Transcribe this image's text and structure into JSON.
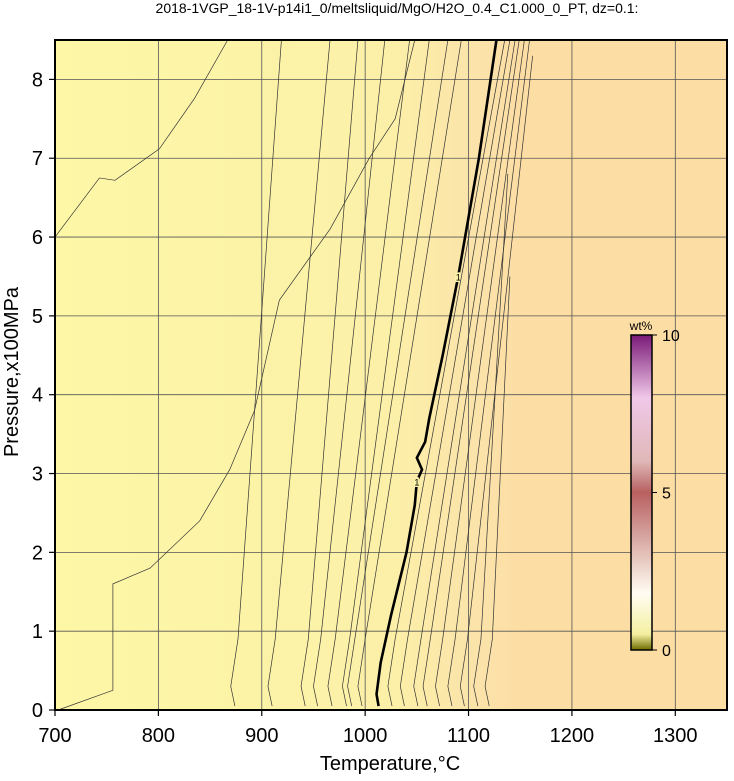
{
  "chart_data": {
    "type": "contour",
    "title": "2018-1VGP_18-1V-p14i1_0/meltsliquid/MgO/H2O_0.4_C1.000_0_PT, dz=0.1:",
    "xlabel": "Temperature,°C",
    "ylabel": "Pressure,x100MPa",
    "xlim": [
      700,
      1350
    ],
    "ylim": [
      0,
      8.5
    ],
    "xticks": [
      700,
      800,
      900,
      1000,
      1100,
      1200,
      1300
    ],
    "yticks": [
      0,
      1,
      2,
      3,
      4,
      5,
      6,
      7,
      8
    ],
    "grid": true,
    "line_color": "#333333",
    "colorbar": {
      "label": "wt%",
      "lim": [
        0,
        10
      ],
      "ticks": [
        0,
        5,
        10
      ]
    },
    "contours": [
      {
        "x": [
          703,
          756,
          756,
          792,
          840,
          869,
          893,
          917,
          966,
          1004,
          1029,
          1048
        ],
        "y": [
          0,
          0.25,
          1.6,
          1.8,
          2.4,
          3.05,
          3.8,
          5.2,
          6.1,
          7.0,
          7.5,
          8.5
        ]
      },
      {
        "x": [
          700,
          743,
          758,
          801,
          835,
          867
        ],
        "y": [
          6.0,
          6.75,
          6.72,
          7.12,
          7.76,
          8.5
        ]
      },
      {
        "x": [
          874,
          870,
          877,
          919
        ],
        "y": [
          0.05,
          0.3,
          0.9,
          8.5
        ]
      },
      {
        "x": [
          910,
          906,
          913,
          966
        ],
        "y": [
          0.05,
          0.3,
          0.9,
          8.5
        ]
      },
      {
        "x": [
          942,
          938,
          945,
          993
        ],
        "y": [
          0.05,
          0.3,
          0.9,
          8.5
        ]
      },
      {
        "x": [
          954,
          950,
          957,
          1019
        ],
        "y": [
          0.05,
          0.3,
          0.9,
          8.5
        ]
      },
      {
        "x": [
          968,
          964,
          971,
          1043
        ],
        "y": [
          0.05,
          0.3,
          0.9,
          8.5
        ]
      },
      {
        "x": [
          982,
          978,
          985,
          1062
        ],
        "y": [
          0.05,
          0.3,
          0.9,
          8.5
        ]
      },
      {
        "x": [
          987,
          983,
          990,
          1080
        ],
        "y": [
          0.05,
          0.3,
          0.9,
          8.5
        ]
      },
      {
        "x": [
          997,
          993,
          1000,
          1093
        ],
        "y": [
          0.05,
          0.3,
          0.9,
          8.5
        ]
      },
      {
        "x": [
          1013,
          1011,
          1015,
          1025,
          1040,
          1048,
          1050,
          1055,
          1050,
          1058,
          1062,
          1075,
          1090,
          1110,
          1127
        ],
        "y": [
          0.05,
          0.2,
          0.6,
          1.2,
          2.0,
          2.6,
          2.9,
          3.05,
          3.2,
          3.4,
          3.7,
          4.5,
          5.5,
          7.0,
          8.5
        ],
        "label": "1",
        "bold": true
      },
      {
        "x": [
          1026,
          1022,
          1029,
          1135
        ],
        "y": [
          0.05,
          0.3,
          0.9,
          8.5
        ]
      },
      {
        "x": [
          1038,
          1034,
          1041,
          1140
        ],
        "y": [
          0.05,
          0.3,
          0.9,
          8.5
        ]
      },
      {
        "x": [
          1051,
          1047,
          1054,
          1145
        ],
        "y": [
          0.05,
          0.3,
          0.9,
          8.5
        ]
      },
      {
        "x": [
          1060,
          1056,
          1063,
          1149
        ],
        "y": [
          0.05,
          0.3,
          0.9,
          8.5
        ]
      },
      {
        "x": [
          1072,
          1068,
          1075,
          1154
        ],
        "y": [
          0.05,
          0.3,
          0.9,
          8.5
        ]
      },
      {
        "x": [
          1084,
          1080,
          1087,
          1159
        ],
        "y": [
          0.05,
          0.3,
          0.9,
          8.5
        ]
      },
      {
        "x": [
          1096,
          1092,
          1099,
          1162
        ],
        "y": [
          0.05,
          0.3,
          0.9,
          8.3
        ]
      },
      {
        "x": [
          1109,
          1105,
          1112,
          1138
        ],
        "y": [
          0.05,
          0.3,
          0.9,
          6.8
        ]
      },
      {
        "x": [
          1120,
          1116,
          1123,
          1140
        ],
        "y": [
          0.05,
          0.3,
          0.9,
          5.5
        ]
      }
    ]
  }
}
